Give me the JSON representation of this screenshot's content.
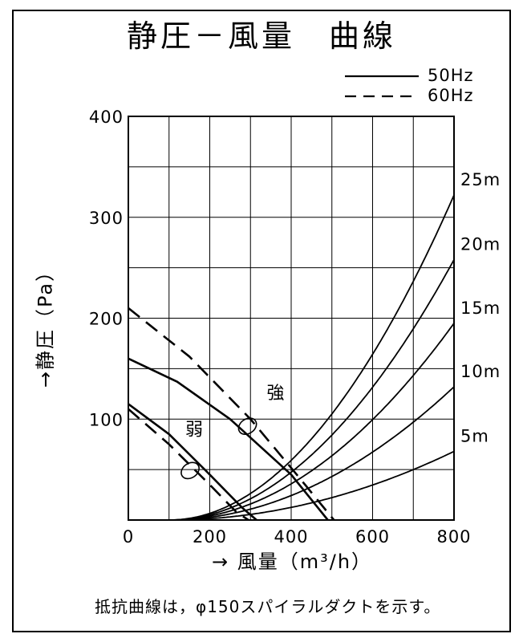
{
  "chart_data": {
    "type": "line",
    "title": "静圧－風量　曲線",
    "xlabel": "→ 風量（m³/h）",
    "ylabel": "→静圧（Pa）",
    "xlim": [
      0,
      800
    ],
    "ylim": [
      0,
      400
    ],
    "x_ticks": [
      "0",
      "200",
      "400",
      "600",
      "800"
    ],
    "y_ticks": [
      "100",
      "200",
      "300",
      "400"
    ],
    "grid": true,
    "legend": {
      "position": "top-right",
      "entries": [
        {
          "label": "50Hz",
          "style": "solid"
        },
        {
          "label": "60Hz",
          "style": "dashed"
        }
      ]
    },
    "fan_curves": [
      {
        "mode": "強",
        "hz": "50Hz",
        "style": "solid",
        "points": [
          [
            0,
            160
          ],
          [
            120,
            137
          ],
          [
            250,
            100
          ],
          [
            400,
            45
          ],
          [
            490,
            0
          ]
        ]
      },
      {
        "mode": "強",
        "hz": "60Hz",
        "style": "dashed",
        "points": [
          [
            0,
            210
          ],
          [
            150,
            162
          ],
          [
            300,
            100
          ],
          [
            420,
            42
          ],
          [
            505,
            0
          ]
        ]
      },
      {
        "mode": "弱",
        "hz": "50Hz",
        "style": "solid",
        "points": [
          [
            0,
            115
          ],
          [
            100,
            85
          ],
          [
            200,
            45
          ],
          [
            280,
            12
          ],
          [
            315,
            0
          ]
        ]
      },
      {
        "mode": "弱",
        "hz": "60Hz",
        "style": "dashed",
        "points": [
          [
            0,
            110
          ],
          [
            100,
            75
          ],
          [
            200,
            35
          ],
          [
            265,
            8
          ],
          [
            295,
            0
          ]
        ]
      }
    ],
    "resistance_curves": [
      {
        "label": "25m",
        "x0": 100,
        "y_at_800": 322
      },
      {
        "label": "20m",
        "x0": 100,
        "y_at_800": 258
      },
      {
        "label": "15m",
        "x0": 100,
        "y_at_800": 195
      },
      {
        "label": "10m",
        "x0": 100,
        "y_at_800": 132
      },
      {
        "label": "5m",
        "x0": 100,
        "y_at_800": 68
      }
    ],
    "annotations": [
      {
        "text": "強",
        "x": 340,
        "y": 120
      },
      {
        "text": "弱",
        "x": 140,
        "y": 84
      }
    ],
    "note": "抵抗曲線は，φ150スパイラルダクトを示す。"
  }
}
